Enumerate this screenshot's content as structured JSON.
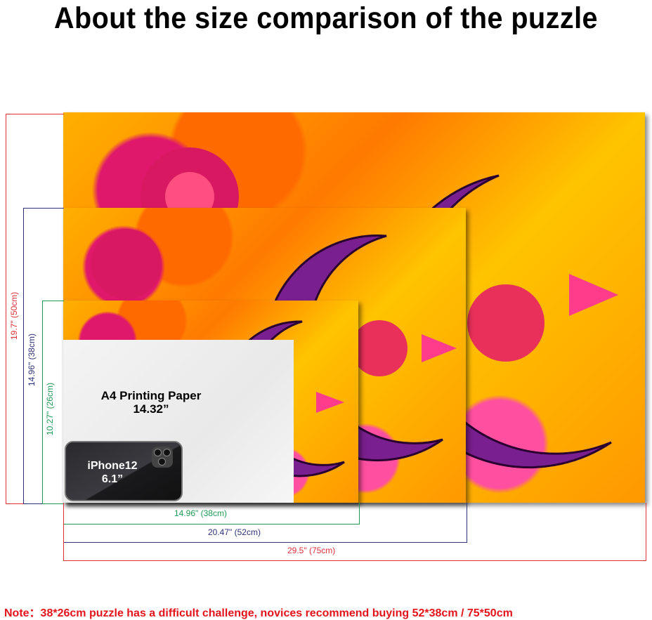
{
  "title": "About the size comparison of the puzzle",
  "paper": {
    "label": "A4 Printing Paper",
    "size": "14.32”"
  },
  "phone": {
    "label": "iPhone12",
    "size": "6.1”"
  },
  "heights": {
    "large": "19.7\" (50cm)",
    "medium": "14.96\" (38cm)",
    "small": "10.27\" (26cm)"
  },
  "widths": {
    "small": "14.96\" (38cm)",
    "medium": "20.47\" (52cm)",
    "large": "29.5\" (75cm)"
  },
  "note": "Note：38*26cm puzzle has a difficult challenge, novices recommend buying 52*38cm / 75*50cm",
  "colors": {
    "large": "#e0303a",
    "medium": "#2e3278",
    "small": "#1f9a55",
    "note": "#e5141c"
  }
}
